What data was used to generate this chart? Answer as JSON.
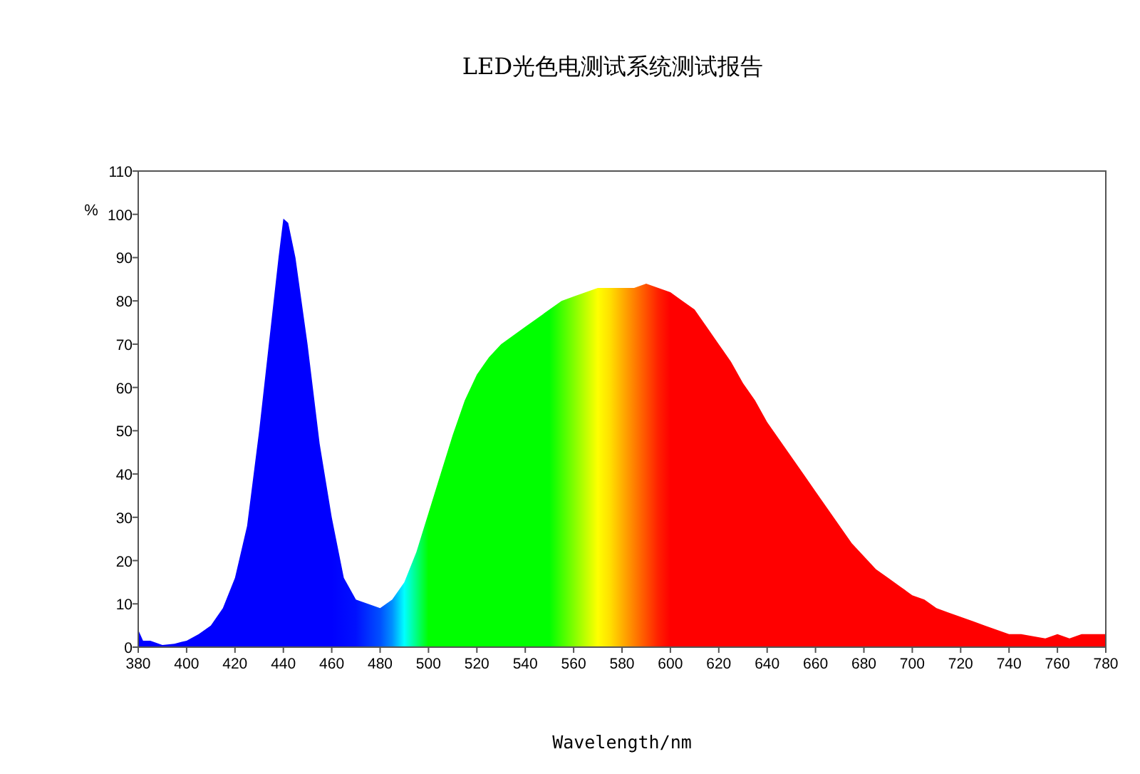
{
  "chart_data": {
    "type": "area",
    "title": "LED光色电测试系统测试报告",
    "xlabel": "Wavelength/nm",
    "ylabel": "%",
    "xlim": [
      380,
      780
    ],
    "xticks": [
      380,
      400,
      420,
      440,
      460,
      480,
      500,
      520,
      540,
      560,
      580,
      600,
      620,
      640,
      660,
      680,
      700,
      720,
      740,
      760,
      780
    ],
    "ylim": [
      0,
      110
    ],
    "yticks": [
      0,
      10,
      20,
      30,
      40,
      50,
      60,
      70,
      80,
      90,
      100,
      110
    ],
    "grid": false,
    "x": [
      380,
      382,
      385,
      390,
      395,
      400,
      405,
      410,
      415,
      420,
      425,
      430,
      435,
      438,
      440,
      442,
      445,
      450,
      455,
      460,
      465,
      470,
      475,
      480,
      485,
      490,
      495,
      500,
      505,
      510,
      515,
      520,
      525,
      530,
      535,
      540,
      545,
      550,
      555,
      560,
      565,
      570,
      575,
      580,
      585,
      590,
      595,
      600,
      605,
      610,
      615,
      620,
      625,
      630,
      635,
      640,
      645,
      650,
      655,
      660,
      665,
      670,
      675,
      680,
      685,
      690,
      695,
      700,
      705,
      710,
      715,
      720,
      725,
      730,
      735,
      740,
      745,
      750,
      755,
      760,
      765,
      770,
      775,
      780
    ],
    "series": [
      {
        "values": [
          4,
          1.5,
          1.5,
          0.5,
          0.8,
          1.5,
          3,
          5,
          9,
          16,
          28,
          50,
          75,
          90,
          99,
          98,
          90,
          70,
          47,
          30,
          16,
          11,
          10,
          9,
          11,
          15,
          22,
          31,
          40,
          49,
          57,
          63,
          67,
          70,
          72,
          74,
          76,
          78,
          80,
          81,
          82,
          83,
          83,
          83,
          83,
          84,
          83,
          82,
          80,
          78,
          74,
          70,
          66,
          61,
          57,
          52,
          48,
          44,
          40,
          36,
          32,
          28,
          24,
          21,
          18,
          16,
          14,
          12,
          11,
          9,
          8,
          7,
          6,
          5,
          4,
          3,
          3,
          2.5,
          2,
          3,
          2,
          3,
          3,
          3
        ],
        "colors": [
          "#0000ff",
          "#0000ff",
          "#0000ff",
          "#0000ff",
          "#0000ff",
          "#0000ff",
          "#0000ff",
          "#0000ff",
          "#0000ff",
          "#0000ff",
          "#0000ff",
          "#0000ff",
          "#0000ff",
          "#0000ff",
          "#0000ff",
          "#0000ff",
          "#0000ff",
          "#0000ff",
          "#0000ff",
          "#0000ff",
          "#0008ff",
          "#0010ff",
          "#0030ff",
          "#0050ff",
          "#0090ff",
          "#00ffff",
          "#00ff80",
          "#00ff00",
          "#00ff00",
          "#00ff00",
          "#00ff00",
          "#00ff00",
          "#00ff00",
          "#00ff00",
          "#00ff00",
          "#00ff00",
          "#00ff00",
          "#00ff00",
          "#40ff00",
          "#80ff00",
          "#c0ff00",
          "#ffff00",
          "#ffe000",
          "#ffb000",
          "#ff8000",
          "#ff5000",
          "#ff2000",
          "#ff0000",
          "#ff0000",
          "#ff0000",
          "#ff0000",
          "#ff0000",
          "#ff0000",
          "#ff0000",
          "#ff0000",
          "#ff0000",
          "#ff0000",
          "#ff0000",
          "#ff0000",
          "#ff0000",
          "#ff0000",
          "#ff0000",
          "#ff0000",
          "#ff0000",
          "#ff0000",
          "#ff0000",
          "#ff0000",
          "#ff0000",
          "#ff0000",
          "#ff0000",
          "#ff0000",
          "#ff0000",
          "#ff0000",
          "#ff0000",
          "#ff0000",
          "#ff0000",
          "#ff0000",
          "#ff0000",
          "#ff0000",
          "#ff0000",
          "#ff0000",
          "#ff0000",
          "#ff0000",
          "#ff0000"
        ]
      }
    ]
  }
}
